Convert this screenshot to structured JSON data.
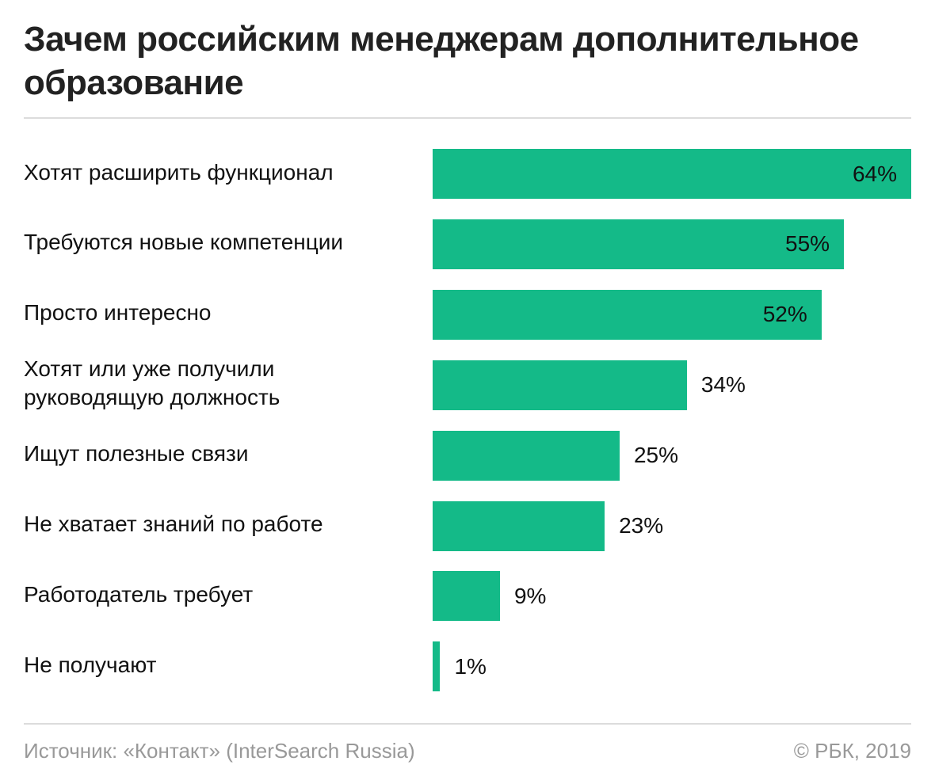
{
  "chart_data": {
    "type": "bar",
    "orientation": "horizontal",
    "title": "Зачем российским менеджерам дополнительное образование",
    "categories": [
      "Хотят расширить функционал",
      "Требуются новые компетенции",
      "Просто интересно",
      "Хотят или уже получили руководящую должность",
      "Ищут полезные связи",
      "Не хватает знаний по работе",
      "Работодатель требует",
      "Не получают"
    ],
    "category_lines": [
      [
        "Хотят расширить функционал"
      ],
      [
        "Требуются новые компетенции"
      ],
      [
        "Просто интересно"
      ],
      [
        "Хотят или уже получили",
        "руководящую должность"
      ],
      [
        "Ищут полезные связи"
      ],
      [
        "Не хватает знаний по работе"
      ],
      [
        "Работодатель требует"
      ],
      [
        "Не получают"
      ]
    ],
    "values": [
      64,
      55,
      52,
      34,
      25,
      23,
      9,
      1
    ],
    "value_labels": [
      "64%",
      "55%",
      "52%",
      "34%",
      "25%",
      "23%",
      "9%",
      "1%"
    ],
    "unit": "%",
    "xlim": [
      0,
      64
    ],
    "grid": false,
    "bar_color": "#14BA88"
  },
  "footer": {
    "source": "Источник: «Контакт» (InterSearch Russia)",
    "copyright": "© РБК, 2019"
  }
}
